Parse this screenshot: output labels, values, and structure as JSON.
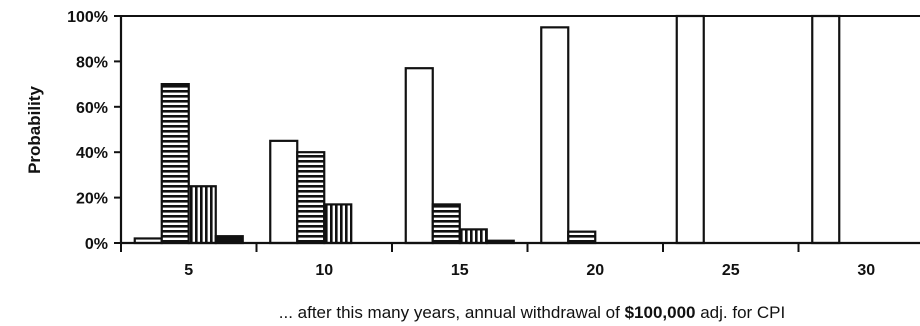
{
  "chart_data": {
    "type": "bar",
    "categories": [
      "5",
      "10",
      "15",
      "20",
      "25",
      "30"
    ],
    "series": [
      {
        "pattern": "plain",
        "values": [
          2,
          45,
          77,
          95,
          100,
          100
        ]
      },
      {
        "pattern": "horizontal-stripes",
        "values": [
          70,
          40,
          17,
          5,
          0,
          0
        ]
      },
      {
        "pattern": "vertical-stripes",
        "values": [
          25,
          17,
          6,
          0,
          0,
          0
        ]
      },
      {
        "pattern": "solid",
        "values": [
          3,
          0,
          1,
          0,
          0,
          0
        ]
      }
    ],
    "ylabel": "Probability",
    "xlabel": {
      "prefix": "... after this many years, annual withdrawal of ",
      "amount": "$100,000",
      "suffix": " adj. for CPI"
    },
    "yticks": [
      "0%",
      "20%",
      "40%",
      "60%",
      "80%",
      "100%"
    ],
    "ylim": [
      0,
      100
    ],
    "grid": false,
    "legend": "none"
  }
}
